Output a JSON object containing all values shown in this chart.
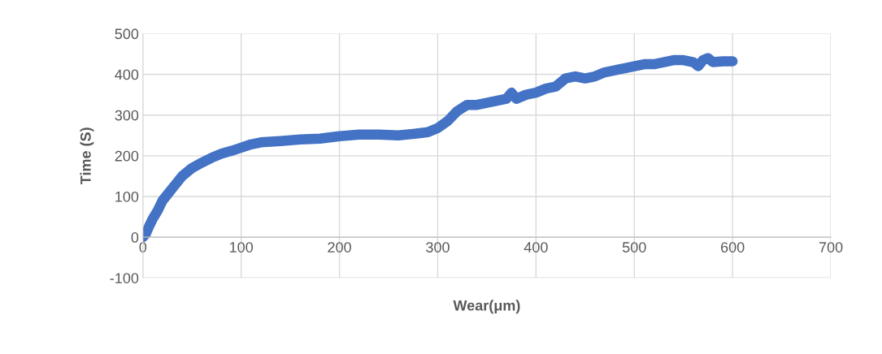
{
  "chart_data": {
    "type": "line",
    "xlabel": "Wear(μm)",
    "ylabel": "Time (S)",
    "x": [
      0,
      3,
      6,
      10,
      15,
      20,
      25,
      30,
      35,
      40,
      45,
      50,
      60,
      70,
      80,
      90,
      100,
      110,
      120,
      140,
      160,
      180,
      200,
      220,
      240,
      260,
      280,
      290,
      300,
      310,
      320,
      330,
      340,
      350,
      360,
      370,
      375,
      380,
      390,
      400,
      410,
      420,
      430,
      440,
      450,
      460,
      470,
      480,
      490,
      500,
      510,
      520,
      530,
      540,
      550,
      560,
      565,
      570,
      575,
      580,
      590,
      600
    ],
    "series": [
      {
        "color": "#4472c4",
        "values": [
          0,
          8,
          25,
          45,
          65,
          90,
          105,
          120,
          135,
          150,
          160,
          170,
          183,
          195,
          205,
          212,
          220,
          228,
          233,
          236,
          240,
          242,
          248,
          252,
          252,
          250,
          255,
          258,
          268,
          285,
          310,
          325,
          325,
          330,
          335,
          340,
          355,
          340,
          350,
          355,
          365,
          370,
          390,
          395,
          390,
          395,
          405,
          410,
          415,
          420,
          425,
          425,
          430,
          435,
          435,
          430,
          420,
          435,
          440,
          430,
          432,
          432
        ]
      }
    ],
    "xlim": [
      0,
      700
    ],
    "xticks": [
      0,
      100,
      200,
      300,
      400,
      500,
      600,
      700
    ],
    "ylim": [
      -100,
      500
    ],
    "yticks": [
      -100,
      0,
      100,
      200,
      300,
      400,
      500
    ],
    "grid": true,
    "marker": "none",
    "line_style": "solid"
  }
}
